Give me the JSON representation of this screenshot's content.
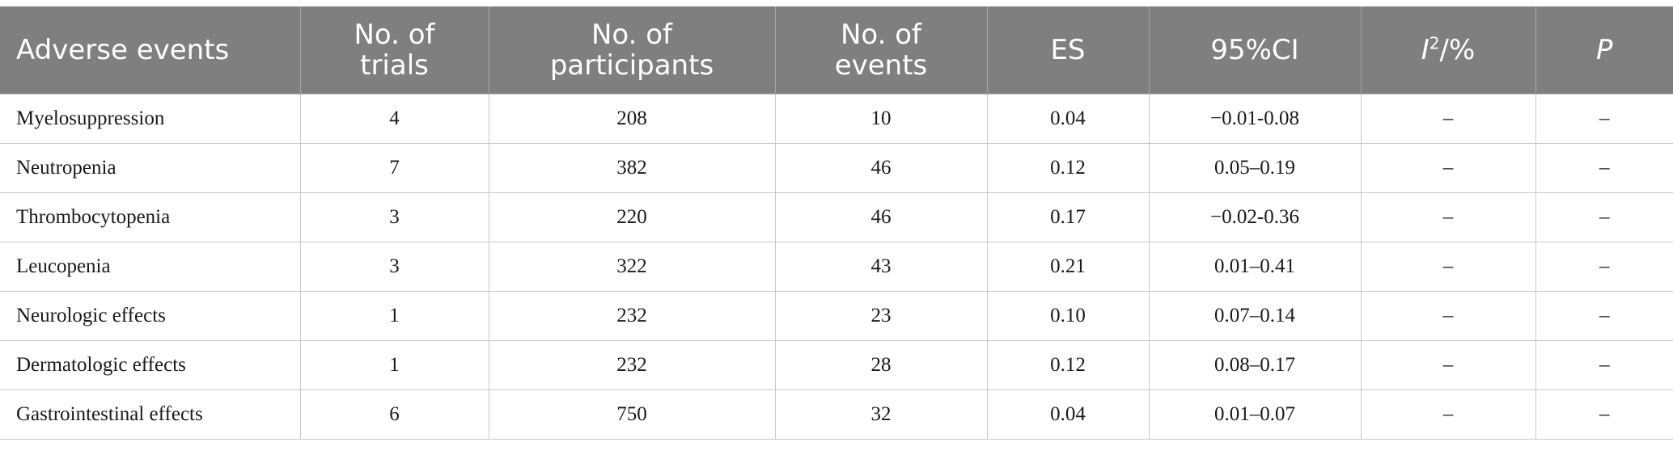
{
  "table": {
    "headers": {
      "adverse_events": "Adverse events",
      "trials_line1": "No. of",
      "trials_line2": "trials",
      "participants_line1": "No. of",
      "participants_line2": "participants",
      "events_line1": "No. of",
      "events_line2": "events",
      "es": "ES",
      "ci": "95%CI",
      "i2_base": "I",
      "i2_sup": "2",
      "i2_suffix": "/%",
      "p": "P"
    },
    "rows": [
      {
        "event": "Myelosuppression",
        "trials": "4",
        "participants": "208",
        "events": "10",
        "es": "0.04",
        "ci": "−0.01-0.08",
        "i2": "–",
        "p": "–"
      },
      {
        "event": "Neutropenia",
        "trials": "7",
        "participants": "382",
        "events": "46",
        "es": "0.12",
        "ci": "0.05–0.19",
        "i2": "–",
        "p": "–"
      },
      {
        "event": "Thrombocytopenia",
        "trials": "3",
        "participants": "220",
        "events": "46",
        "es": "0.17",
        "ci": "−0.02-0.36",
        "i2": "–",
        "p": "–"
      },
      {
        "event": "Leucopenia",
        "trials": "3",
        "participants": "322",
        "events": "43",
        "es": "0.21",
        "ci": "0.01–0.41",
        "i2": "–",
        "p": "–"
      },
      {
        "event": "Neurologic effects",
        "trials": "1",
        "participants": "232",
        "events": "23",
        "es": "0.10",
        "ci": "0.07–0.14",
        "i2": "–",
        "p": "–"
      },
      {
        "event": "Dermatologic effects",
        "trials": "1",
        "participants": "232",
        "events": "28",
        "es": "0.12",
        "ci": "0.08–0.17",
        "i2": "–",
        "p": "–"
      },
      {
        "event": "Gastrointestinal effects",
        "trials": "6",
        "participants": "750",
        "events": "32",
        "es": "0.04",
        "ci": "0.01–0.07",
        "i2": "–",
        "p": "–"
      }
    ]
  }
}
